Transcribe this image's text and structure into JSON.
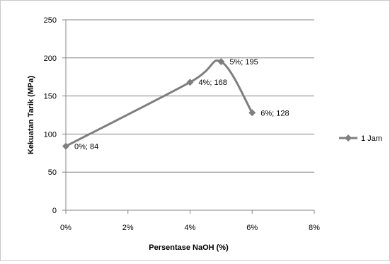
{
  "chart_data": {
    "type": "line",
    "title": "",
    "xlabel": "Persentase NaOH (%)",
    "ylabel": "Kekuatan Tarik  (MPa)",
    "xlim": [
      0,
      8
    ],
    "ylim": [
      0,
      250
    ],
    "x_ticks": [
      "0%",
      "2%",
      "4%",
      "6%",
      "8%"
    ],
    "y_ticks": [
      "0",
      "50",
      "100",
      "150",
      "200",
      "250"
    ],
    "grid": "horizontal",
    "legend_position": "right",
    "series": [
      {
        "name": "1 Jam",
        "color": "#7f7f7f",
        "marker": "diamond",
        "smooth": true,
        "points": [
          {
            "x": 0,
            "y": 84,
            "label": "0%; 84"
          },
          {
            "x": 4,
            "y": 168,
            "label": "4%; 168"
          },
          {
            "x": 5,
            "y": 195,
            "label": "5%; 195"
          },
          {
            "x": 6,
            "y": 128,
            "label": "6%; 128"
          }
        ]
      }
    ]
  }
}
